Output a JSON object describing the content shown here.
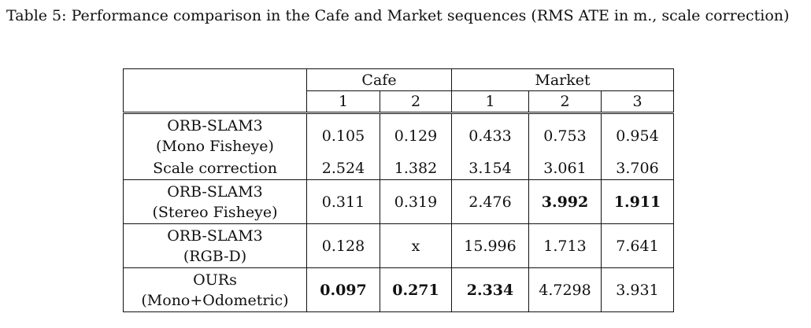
{
  "caption": "Table 5: Performance comparison in the Cafe and Market sequences (RMS ATE in m., scale correction)",
  "groups": {
    "cafe": "Cafe",
    "market": "Market"
  },
  "subheaders": [
    "1",
    "2",
    "1",
    "2",
    "3"
  ],
  "rows": [
    {
      "method_line1": "ORB-SLAM3",
      "method_line2": "(Mono Fisheye)",
      "values": [
        "0.105",
        "0.129",
        "0.433",
        "0.753",
        "0.954"
      ],
      "bold": [
        false,
        false,
        false,
        false,
        false
      ]
    },
    {
      "method_line1": "Scale correction",
      "values": [
        "2.524",
        "1.382",
        "3.154",
        "3.061",
        "3.706"
      ],
      "bold": [
        false,
        false,
        false,
        false,
        false
      ]
    },
    {
      "method_line1": "ORB-SLAM3",
      "method_line2": "(Stereo Fisheye)",
      "values": [
        "0.311",
        "0.319",
        "2.476",
        "3.992",
        "1.911"
      ],
      "bold": [
        false,
        false,
        false,
        true,
        true
      ]
    },
    {
      "method_line1": "ORB-SLAM3",
      "method_line2": "(RGB-D)",
      "values": [
        "0.128",
        "x",
        "15.996",
        "1.713",
        "7.641"
      ],
      "bold": [
        false,
        false,
        false,
        false,
        false
      ]
    },
    {
      "method_line1": "OURs",
      "method_line2": "(Mono+Odometric)",
      "values": [
        "0.097",
        "0.271",
        "2.334",
        "4.7298",
        "3.931"
      ],
      "bold": [
        true,
        true,
        true,
        false,
        false
      ]
    }
  ]
}
